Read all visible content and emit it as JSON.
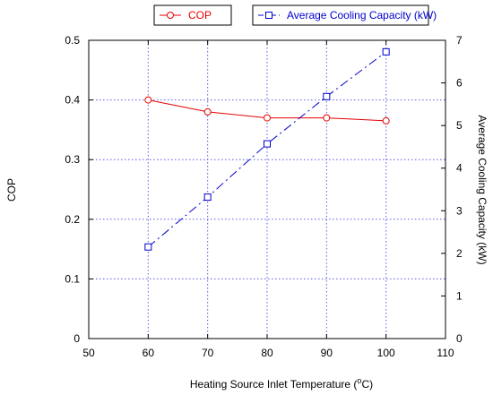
{
  "chart_data": {
    "type": "line",
    "x": [
      60,
      70,
      80,
      90,
      100
    ],
    "xlabel_main": "Heating Source Inlet Temperature (",
    "xlabel_sup": "o",
    "xlabel_unit": "C)",
    "ylabel_left": "COP",
    "ylabel_right": "Average Cooling Capacity (kW)",
    "xlim": [
      50,
      110
    ],
    "ylim_left": [
      0,
      0.5
    ],
    "ylim_right": [
      0,
      7
    ],
    "x_ticks": [
      "50",
      "60",
      "70",
      "80",
      "90",
      "100",
      "110"
    ],
    "y_left_ticks": [
      "0",
      "0.1",
      "0.2",
      "0.3",
      "0.4",
      "0.5"
    ],
    "y_right_ticks": [
      "0",
      "1",
      "2",
      "3",
      "4",
      "5",
      "6",
      "7"
    ],
    "grid": true,
    "legend_placement": "top",
    "series": [
      {
        "name": "COP",
        "axis": "left",
        "color": "#e60000",
        "marker": "circle",
        "line_style": "solid",
        "values": [
          0.4,
          0.38,
          0.37,
          0.37,
          0.365
        ]
      },
      {
        "name": "Average Cooling Capacity (kW)",
        "axis": "right",
        "color": "#0000cc",
        "marker": "square",
        "line_style": "dashdot",
        "values": [
          2.15,
          3.32,
          4.57,
          5.68,
          6.73
        ]
      }
    ]
  }
}
